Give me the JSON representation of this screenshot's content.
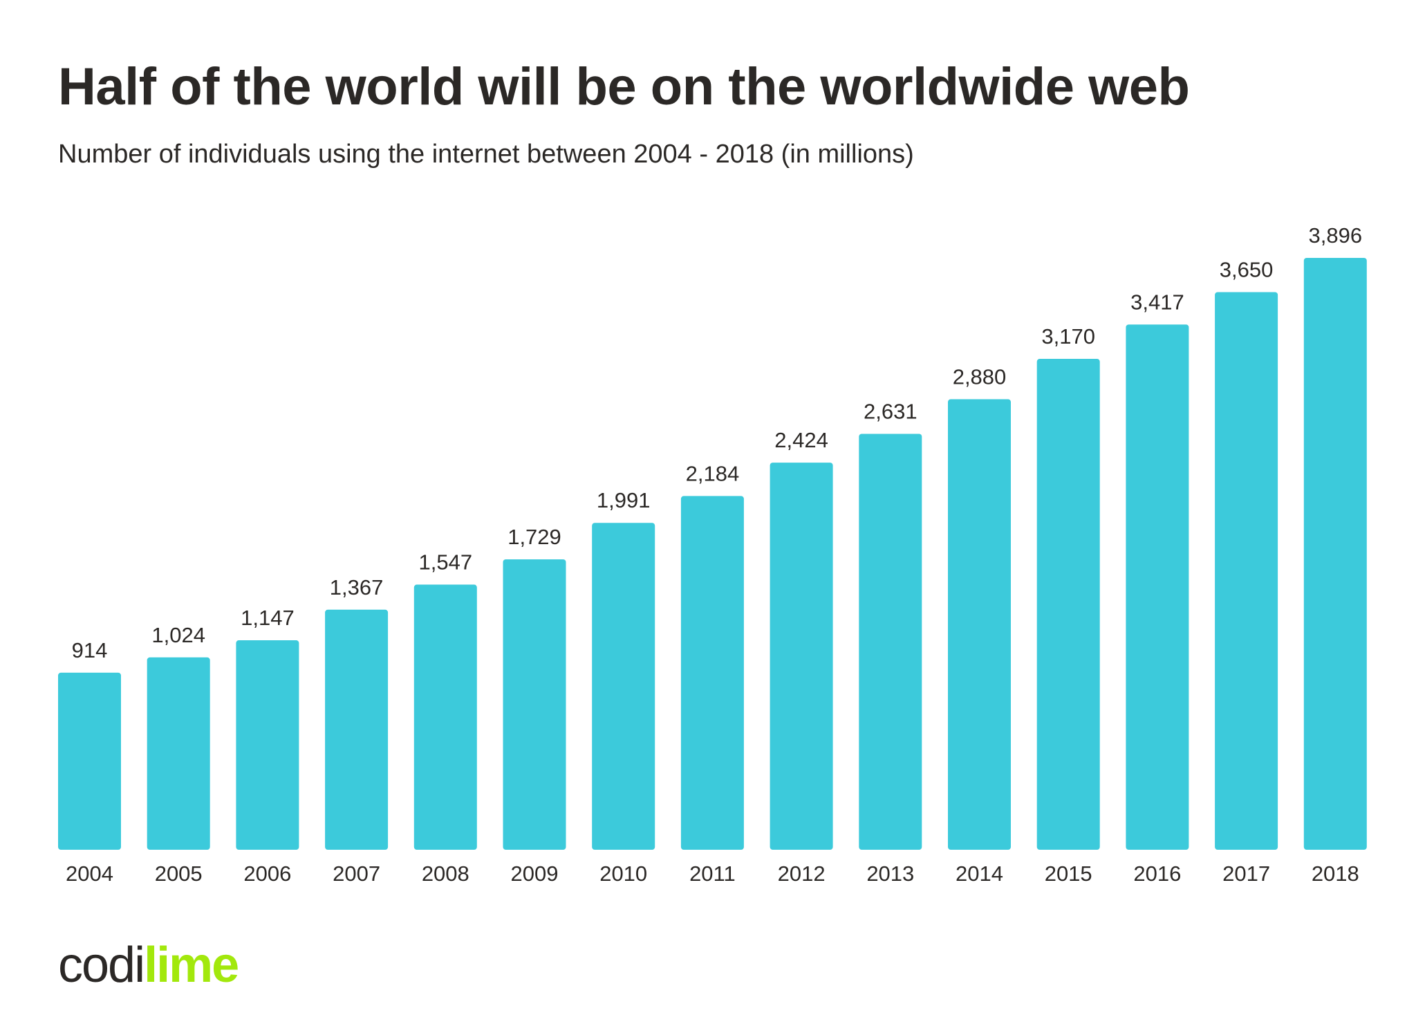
{
  "chart_data": {
    "type": "bar",
    "title": "Half of the world will be on the worldwide web",
    "subtitle": "Number of individuals using the internet between 2004 - 2018 (in millions)",
    "categories": [
      "2004",
      "2005",
      "2006",
      "2007",
      "2008",
      "2009",
      "2010",
      "2011",
      "2012",
      "2013",
      "2014",
      "2015",
      "2016",
      "2017",
      "2018"
    ],
    "values": [
      914,
      1024,
      1147,
      1367,
      1547,
      1729,
      1991,
      2184,
      2424,
      2631,
      2880,
      3170,
      3417,
      3650,
      3896
    ],
    "value_labels": [
      "914",
      "1,024",
      "1,147",
      "1,367",
      "1,547",
      "1,729",
      "1,991",
      "2,184",
      "2,424",
      "2,631",
      "2,880",
      "3,170",
      "3,417",
      "3,650",
      "3,896"
    ],
    "xlabel": "",
    "ylabel": "",
    "grid": false,
    "legend": "none",
    "bar_color": "#3ccadb"
  },
  "logo": {
    "part1": "codi",
    "part2": "lime",
    "colors": {
      "codi": "#2b2826",
      "lime": "#a2e80c"
    }
  }
}
